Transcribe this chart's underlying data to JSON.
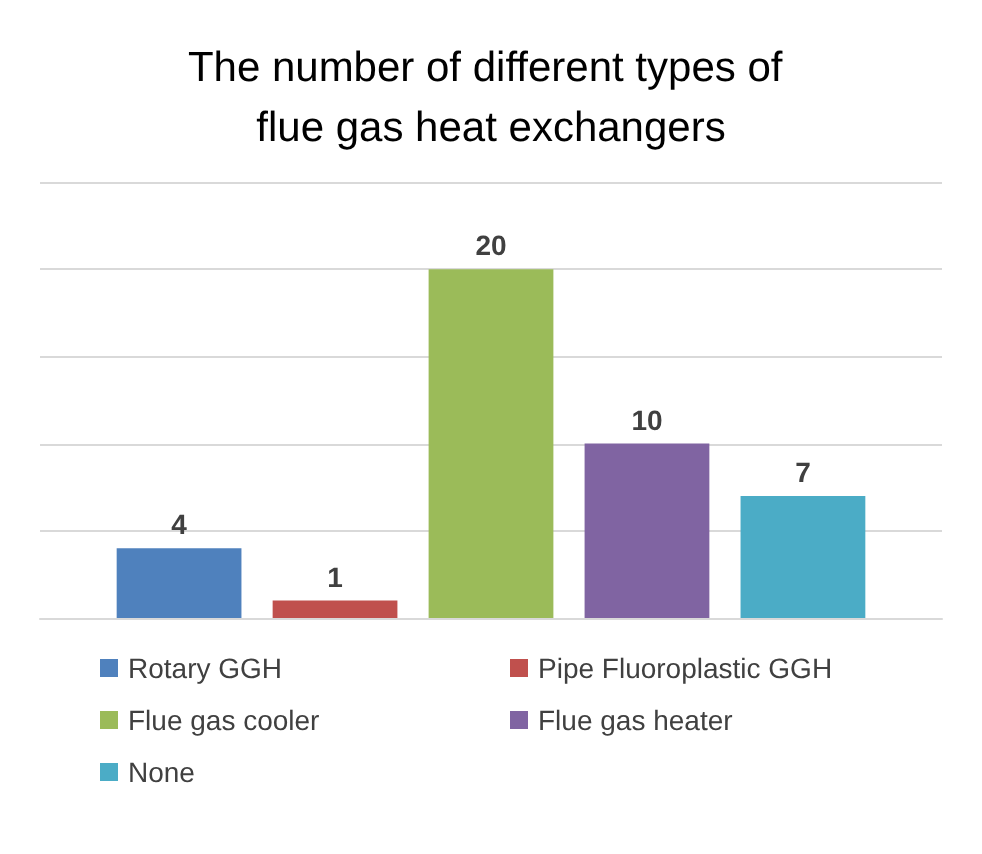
{
  "chart_data": {
    "type": "bar",
    "title": "The number of different types of flue gas heat exchangers",
    "categories": [
      null
    ],
    "series": [
      {
        "name": "Rotary GGH",
        "color": "#4f81bd",
        "values": [
          4
        ]
      },
      {
        "name": "Pipe Fluoroplastic GGH",
        "color": "#c0504d",
        "values": [
          1
        ]
      },
      {
        "name": "Flue gas cooler",
        "color": "#9bbb59",
        "values": [
          20
        ]
      },
      {
        "name": "Flue gas heater",
        "color": "#8064a2",
        "values": [
          10
        ]
      },
      {
        "name": "None",
        "color": "#4bacc6",
        "values": [
          7
        ]
      }
    ],
    "ylim": [
      0,
      25
    ],
    "yticks": [
      {
        "value": 0,
        "label": null
      },
      {
        "value": 5,
        "label": null
      },
      {
        "value": 10,
        "label": null
      },
      {
        "value": 15,
        "label": null
      },
      {
        "value": 20,
        "label": null
      },
      {
        "value": 25,
        "label": null
      }
    ],
    "grid": "y",
    "legend": "bottom",
    "data_labels": true
  }
}
